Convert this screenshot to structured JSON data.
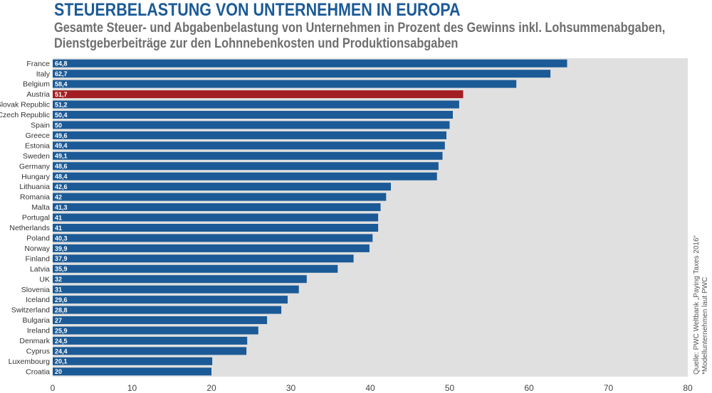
{
  "header": {
    "title": "STEUERBELASTUNG VON UNTERNEHMEN IN EUROPA",
    "subtitle_line1": "Gesamte Steuer- und Abgabenbelastung von Unternehmen in Prozent des Gewinns inkl. Lohsummenabgaben,",
    "subtitle_line2": "Dienstgeberbeiträge zur den Lohnnebenkosten und Produktionsabgaben"
  },
  "source": {
    "line1": "Quelle: PWC Weltbank „Paying Taxes 2016“",
    "line2": "*Modellunternehmen laut PWC"
  },
  "colors": {
    "bar": "#1b5a96",
    "highlight": "#a31e22",
    "plot_background": "#e0e0e0"
  },
  "chart_data": {
    "type": "bar",
    "orientation": "horizontal",
    "categories": [
      "France",
      "Italy",
      "Belgium",
      "Austria",
      "Slovak Republic",
      "Czech Republic",
      "Spain",
      "Greece",
      "Estonia",
      "Sweden",
      "Germany",
      "Hungary",
      "Lithuania",
      "Romania",
      "Malta",
      "Portugal",
      "Netherlands",
      "Poland",
      "Norway",
      "Finland",
      "Latvia",
      "UK",
      "Slovenia",
      "Iceland",
      "Switzerland",
      "Bulgaria",
      "Ireland",
      "Denmark",
      "Cyprus",
      "Luxembourg",
      "Croatia"
    ],
    "values": [
      64.8,
      62.7,
      58.4,
      51.7,
      51.2,
      50.4,
      50,
      49.6,
      49.4,
      49.1,
      48.6,
      48.4,
      42.6,
      42,
      41.3,
      41,
      41,
      40.3,
      39.9,
      37.9,
      35.9,
      32,
      31,
      29.6,
      28.8,
      27,
      25.9,
      24.5,
      24.4,
      20.1,
      20
    ],
    "value_labels": [
      "64,8",
      "62,7",
      "58,4",
      "51,7",
      "51,2",
      "50,4",
      "50",
      "49,6",
      "49,4",
      "49,1",
      "48,6",
      "48,4",
      "42,6",
      "42",
      "41,3",
      "41",
      "41",
      "40,3",
      "39,9",
      "37,9",
      "35,9",
      "32",
      "31",
      "29,6",
      "28,8",
      "27",
      "25,9",
      "24,5",
      "24,4",
      "20,1",
      "20"
    ],
    "highlight": "Austria",
    "xlim": [
      0,
      80
    ],
    "xticks": [
      0,
      10,
      20,
      30,
      40,
      50,
      60,
      70,
      80
    ],
    "grid": false
  }
}
